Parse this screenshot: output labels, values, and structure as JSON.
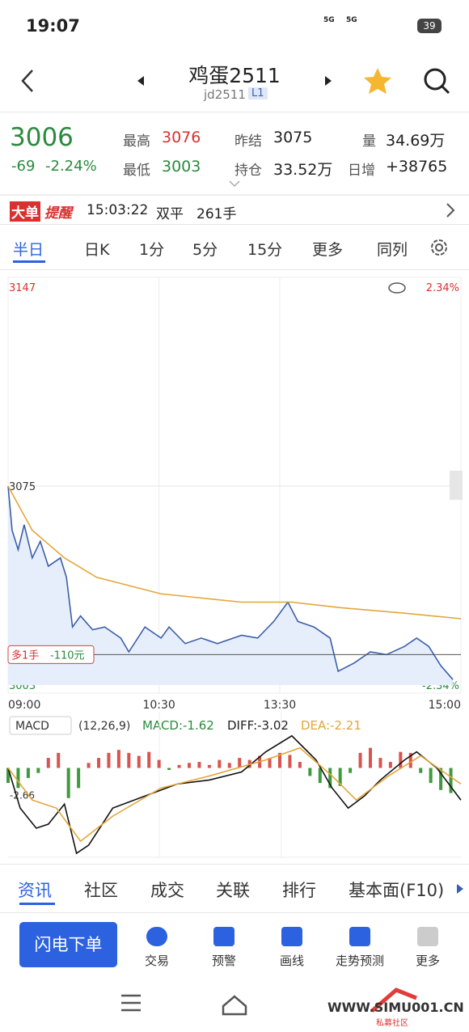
{
  "status": {
    "time": "19:07",
    "net1": "5G",
    "net2": "5G",
    "battery": "39"
  },
  "header": {
    "title": "鸡蛋2511",
    "code": "jd2511",
    "badge": "L1"
  },
  "quote": {
    "price": "3006",
    "change": "-69",
    "change_pct": "-2.24%",
    "fields": [
      {
        "label": "最高",
        "value": "3076"
      },
      {
        "label": "最低",
        "value": "3003"
      },
      {
        "label": "昨结",
        "value": "3075"
      },
      {
        "label": "持仓",
        "value": "33.52万"
      },
      {
        "label": "量",
        "value": "34.69万"
      },
      {
        "label": "日增",
        "value": "+38765"
      }
    ]
  },
  "alert": {
    "tag1": "大单",
    "tag2": "提醒",
    "time": "15:03:22",
    "action": "双平",
    "amount": "261手"
  },
  "period_tabs": [
    "半日",
    "日K",
    "1分",
    "5分",
    "15分",
    "更多",
    "同列"
  ],
  "chart_data": [
    {
      "type": "line",
      "xlim": [
        0,
        225
      ],
      "ylim": [
        3003,
        3147
      ],
      "yticks": [
        3003,
        3075,
        3147
      ],
      "y2lim": [
        -2.34,
        2.34
      ],
      "y2ticks": [
        {
          "value": 2.34,
          "label": "2.34%"
        },
        {
          "value": -2.34,
          "label": "-2.34%"
        }
      ],
      "xticks": [
        {
          "value": 0,
          "label": "09:00"
        },
        {
          "value": 75,
          "label": "10:30"
        },
        {
          "value": 135,
          "label": "13:30"
        },
        {
          "value": 225,
          "label": "15:00"
        }
      ],
      "position": {
        "value": 3014,
        "label": "多1手",
        "pnl": "-110元"
      },
      "series": [
        {
          "color": "#3b5fa8",
          "area": true,
          "x": [
            0,
            2,
            5,
            8,
            12,
            16,
            20,
            26,
            29,
            32,
            36,
            42,
            48,
            56,
            60,
            68,
            76,
            80,
            88,
            96,
            104,
            116,
            124,
            132,
            139,
            144,
            152,
            160,
            164,
            172,
            180,
            188,
            197,
            203,
            209,
            215,
            221
          ],
          "values": [
            3075,
            3059,
            3052,
            3061,
            3049,
            3055,
            3046,
            3049,
            3042,
            3024,
            3028,
            3023,
            3024,
            3020,
            3015,
            3024,
            3020,
            3024,
            3018,
            3020,
            3018,
            3021,
            3020,
            3026,
            3033,
            3026,
            3024,
            3020,
            3008,
            3011,
            3015,
            3014,
            3017,
            3020,
            3017,
            3010,
            3005
          ]
        },
        {
          "color": "#e3a63a",
          "x": [
            0,
            12,
            28,
            44,
            76,
            116,
            141,
            165,
            197,
            225
          ],
          "values": [
            3075,
            3059,
            3049,
            3042,
            3036,
            3033,
            3033,
            3031,
            3029,
            3027
          ]
        }
      ]
    },
    {
      "type": "macd",
      "name": "MACD",
      "params": "(12,26,9)",
      "legend": [
        "MACD:-1.62",
        "DIFF:-3.02",
        "DEA:-2.21"
      ],
      "xlim": [
        0,
        225
      ],
      "ylim": [
        -8.9,
        5.6
      ],
      "yticks": [
        -2.66
      ],
      "histogram": {
        "up_color": "#d9534f",
        "down_color": "#3f9a3f",
        "x": [
          0,
          5,
          10,
          15,
          20,
          25,
          30,
          35,
          40,
          45,
          50,
          55,
          60,
          65,
          70,
          75,
          80,
          85,
          90,
          95,
          100,
          105,
          110,
          115,
          120,
          125,
          130,
          135,
          140,
          145,
          150,
          155,
          160,
          165,
          170,
          175,
          180,
          185,
          190,
          195,
          200,
          205,
          210,
          215,
          220
        ],
        "values": [
          -1.5,
          -2.0,
          -1.0,
          -0.5,
          1.0,
          1.5,
          -3.0,
          -2.0,
          0.5,
          1.0,
          1.5,
          1.8,
          1.5,
          1.2,
          1.6,
          0.8,
          -0.2,
          0.3,
          0.5,
          0.6,
          0.3,
          0.8,
          0.5,
          1.0,
          0.8,
          1.2,
          1.0,
          1.5,
          1.3,
          0.6,
          -0.8,
          -1.5,
          -2.0,
          -1.8,
          -0.5,
          1.5,
          2.0,
          1.0,
          0.6,
          1.6,
          1.5,
          -0.5,
          -1.5,
          -2.2,
          -2.5
        ]
      },
      "series": [
        {
          "color": "#111111",
          "x": [
            0,
            6,
            14,
            20,
            28,
            34,
            40,
            52,
            68,
            84,
            100,
            116,
            128,
            141,
            153,
            161,
            169,
            177,
            185,
            197,
            203,
            213,
            225
          ],
          "values": [
            0,
            -4.0,
            -6.0,
            -5.6,
            -3.6,
            -8.5,
            -7.7,
            -4.0,
            -2.8,
            -1.6,
            -1.2,
            -0.4,
            1.6,
            3.2,
            0.8,
            -2.0,
            -4.0,
            -2.8,
            -1.2,
            0.8,
            1.6,
            0,
            -3.2
          ]
        },
        {
          "color": "#e3a63a",
          "x": [
            0,
            12,
            24,
            36,
            52,
            76,
            100,
            128,
            145,
            161,
            173,
            189,
            205,
            225
          ],
          "values": [
            0,
            -3.2,
            -4.0,
            -7.3,
            -4.8,
            -2.0,
            -0.8,
            0.8,
            2.0,
            -0.8,
            -3.2,
            -0.8,
            1.2,
            -1.6
          ]
        }
      ]
    }
  ],
  "info_tabs": [
    "资讯",
    "社区",
    "成交",
    "关联",
    "排行",
    "基本面(F10)"
  ],
  "actions": {
    "button": "闪电下单",
    "items": [
      "交易",
      "预警",
      "画线",
      "走势预测",
      "更多"
    ]
  },
  "watermark": {
    "site": "WWW.SIMU001.CN",
    "name": "私募社区"
  }
}
